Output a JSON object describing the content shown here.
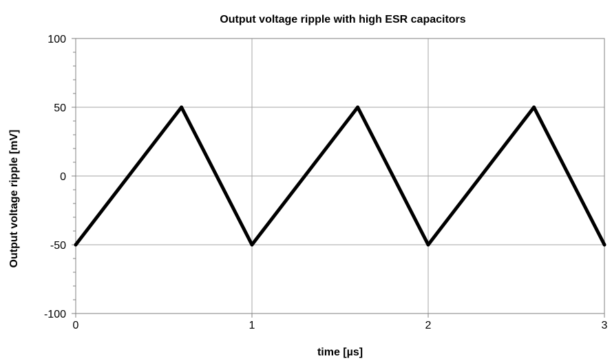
{
  "chart_data": {
    "type": "line",
    "title": "Output voltage ripple with high ESR capacitors",
    "xlabel": "time [µs]",
    "ylabel": "Output voltage ripple [mV]",
    "xlim": [
      0,
      3
    ],
    "ylim": [
      -100,
      100
    ],
    "x_ticks": [
      0,
      1,
      2,
      3
    ],
    "x_tick_labels": [
      "0",
      "1",
      "2",
      "3"
    ],
    "y_ticks": [
      100,
      50,
      0,
      -50,
      -100
    ],
    "y_tick_labels": [
      "100",
      "50",
      "0",
      "-50",
      "-100"
    ],
    "grid": true,
    "legend": "none",
    "series": [
      {
        "color": "#000000",
        "x": [
          0,
          0.6,
          1,
          1.6,
          2,
          2.6,
          3
        ],
        "y": [
          -50,
          50,
          -50,
          50,
          -50,
          50,
          -50
        ]
      }
    ]
  }
}
